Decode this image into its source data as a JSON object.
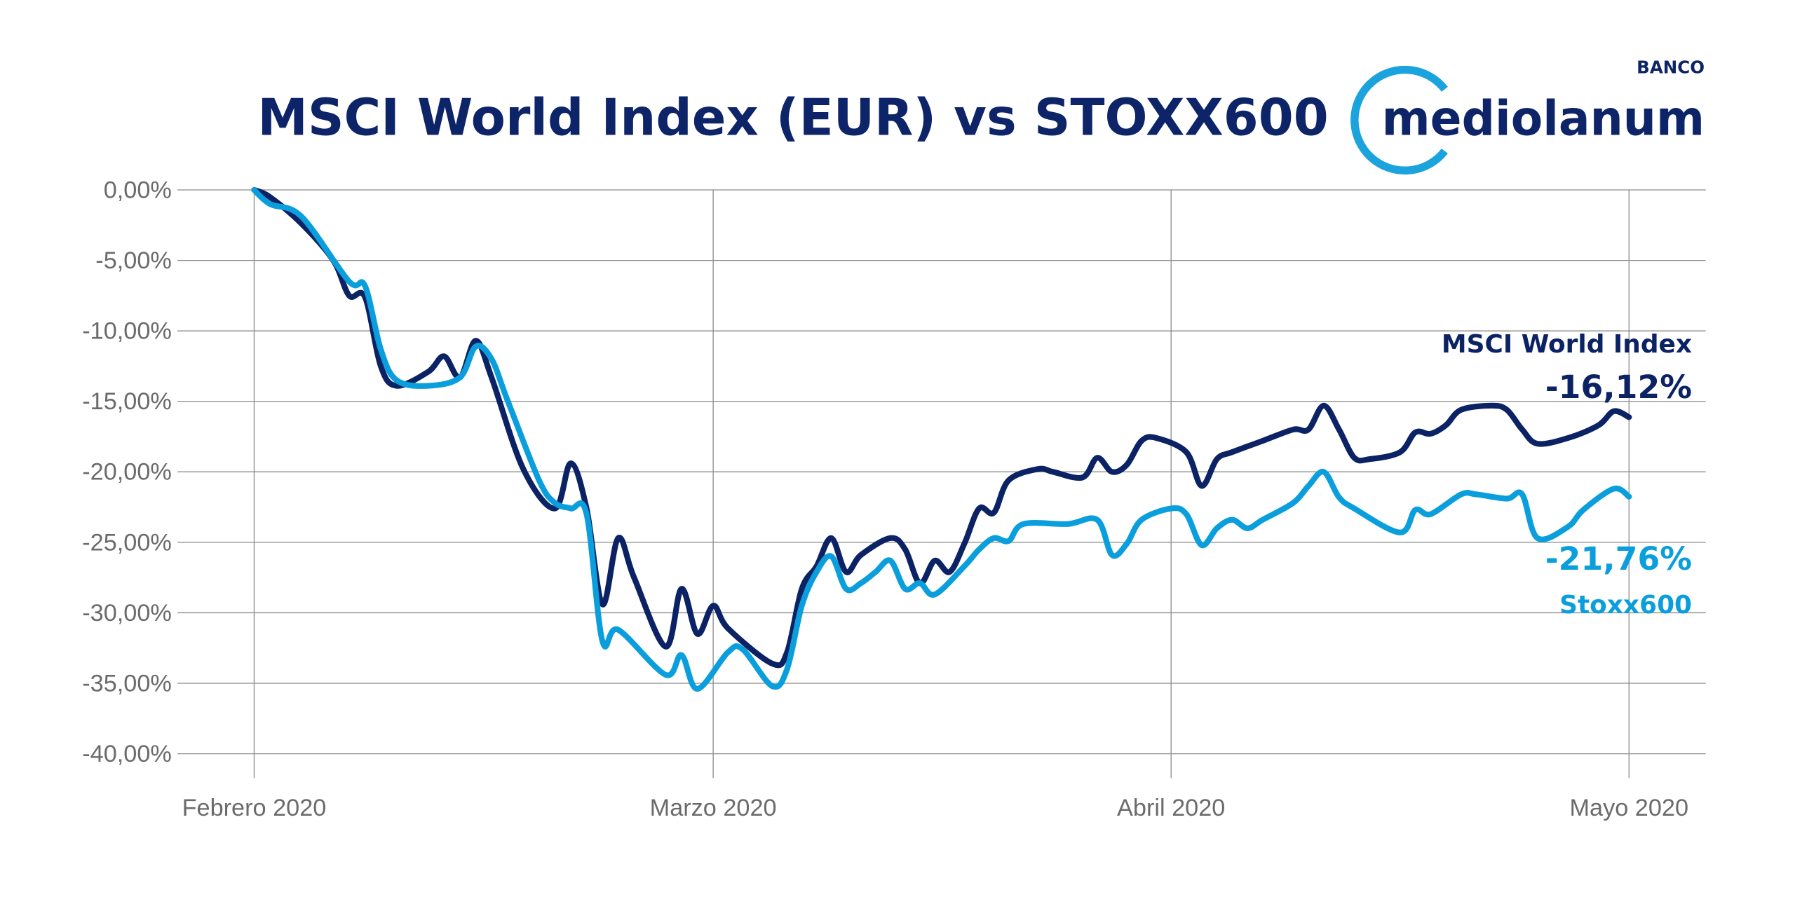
{
  "logo": {
    "brand": "mediolanum",
    "prefix": "BANCO",
    "ring_color": "#1aa3dd",
    "text_color": "#0d2468"
  },
  "chart_data": {
    "type": "line",
    "title": "MSCI World Index (EUR) vs STOXX600",
    "xlabel": "",
    "ylabel": "",
    "x_ticks": [
      {
        "date": "2020-02-01",
        "label": "Febrero 2020"
      },
      {
        "date": "2020-03-01",
        "label": "Marzo 2020"
      },
      {
        "date": "2020-04-01",
        "label": "Abril 2020"
      },
      {
        "date": "2020-05-01",
        "label": "Mayo 2020"
      }
    ],
    "y_ticks": [
      {
        "value": 0,
        "label": "0,00%"
      },
      {
        "value": -5,
        "label": "-5,00%"
      },
      {
        "value": -10,
        "label": "-10,00%"
      },
      {
        "value": -15,
        "label": "-15,00%"
      },
      {
        "value": -20,
        "label": "-20,00%"
      },
      {
        "value": -25,
        "label": "-25,00%"
      },
      {
        "value": -30,
        "label": "-30,00%"
      },
      {
        "value": -35,
        "label": "-35,00%"
      },
      {
        "value": -40,
        "label": "-40,00%"
      }
    ],
    "ylim": [
      -41.5,
      0
    ],
    "grid": true,
    "series": [
      {
        "name": "MSCI World Index",
        "final_label": "-16,12%",
        "color": "#0b2265",
        "points": [
          [
            "2020-02-01",
            0
          ],
          [
            "2020-02-02",
            -0.5
          ],
          [
            "2020-02-04",
            -2.4
          ],
          [
            "2020-02-06",
            -5.0
          ],
          [
            "2020-02-07",
            -7.5
          ],
          [
            "2020-02-08",
            -7.6
          ],
          [
            "2020-02-09",
            -12.5
          ],
          [
            "2020-02-10",
            -13.9
          ],
          [
            "2020-02-12",
            -12.9
          ],
          [
            "2020-02-13",
            -11.8
          ],
          [
            "2020-02-14",
            -13.3
          ],
          [
            "2020-02-15",
            -10.7
          ],
          [
            "2020-02-16",
            -13.3
          ],
          [
            "2020-02-18",
            -19.8
          ],
          [
            "2020-02-20",
            -22.6
          ],
          [
            "2020-02-21",
            -19.4
          ],
          [
            "2020-02-22",
            -22.6
          ],
          [
            "2020-02-23",
            -29.4
          ],
          [
            "2020-02-24",
            -24.7
          ],
          [
            "2020-02-25",
            -27.5
          ],
          [
            "2020-02-27",
            -32.4
          ],
          [
            "2020-02-28",
            -28.3
          ],
          [
            "2020-02-29",
            -31.5
          ],
          [
            "2020-03-01",
            -29.5
          ],
          [
            "2020-03-02",
            -31.1
          ],
          [
            "2020-03-05",
            -33.6
          ],
          [
            "2020-03-06",
            -32.8
          ],
          [
            "2020-03-07",
            -28.3
          ],
          [
            "2020-03-08",
            -26.7
          ],
          [
            "2020-03-09",
            -24.7
          ],
          [
            "2020-03-10",
            -27.1
          ],
          [
            "2020-03-11",
            -25.9
          ],
          [
            "2020-03-13",
            -24.7
          ],
          [
            "2020-03-14",
            -25.5
          ],
          [
            "2020-03-15",
            -27.9
          ],
          [
            "2020-03-16",
            -26.3
          ],
          [
            "2020-03-17",
            -27.1
          ],
          [
            "2020-03-18",
            -25.1
          ],
          [
            "2020-03-19",
            -22.6
          ],
          [
            "2020-03-20",
            -22.9
          ],
          [
            "2020-03-21",
            -20.6
          ],
          [
            "2020-03-23",
            -19.8
          ],
          [
            "2020-03-24",
            -20.0
          ],
          [
            "2020-03-26",
            -20.4
          ],
          [
            "2020-03-27",
            -19.0
          ],
          [
            "2020-03-28",
            -20.0
          ],
          [
            "2020-03-29",
            -19.5
          ],
          [
            "2020-03-30",
            -17.8
          ],
          [
            "2020-03-31",
            -17.6
          ],
          [
            "2020-04-02",
            -18.6
          ],
          [
            "2020-04-03",
            -21.0
          ],
          [
            "2020-04-04",
            -19.1
          ],
          [
            "2020-04-05",
            -18.6
          ],
          [
            "2020-04-07",
            -17.8
          ],
          [
            "2020-04-09",
            -17.0
          ],
          [
            "2020-04-10",
            -17.0
          ],
          [
            "2020-04-11",
            -15.3
          ],
          [
            "2020-04-12",
            -17.0
          ],
          [
            "2020-04-13",
            -19.0
          ],
          [
            "2020-04-14",
            -19.1
          ],
          [
            "2020-04-16",
            -18.6
          ],
          [
            "2020-04-17",
            -17.2
          ],
          [
            "2020-04-18",
            -17.3
          ],
          [
            "2020-04-19",
            -16.7
          ],
          [
            "2020-04-20",
            -15.6
          ],
          [
            "2020-04-22",
            -15.3
          ],
          [
            "2020-04-23",
            -15.6
          ],
          [
            "2020-04-24",
            -17.0
          ],
          [
            "2020-04-25",
            -18.0
          ],
          [
            "2020-04-27",
            -17.6
          ],
          [
            "2020-04-29",
            -16.7
          ],
          [
            "2020-04-30",
            -15.7
          ],
          [
            "2020-05-01",
            -16.12
          ]
        ]
      },
      {
        "name": "Stoxx600",
        "final_label": "-21,76%",
        "color": "#0a9fdc",
        "points": [
          [
            "2020-02-01",
            0
          ],
          [
            "2020-02-02",
            -1.0
          ],
          [
            "2020-02-04",
            -1.9
          ],
          [
            "2020-02-07",
            -6.5
          ],
          [
            "2020-02-08",
            -6.8
          ],
          [
            "2020-02-09",
            -11.3
          ],
          [
            "2020-02-10",
            -13.5
          ],
          [
            "2020-02-12",
            -13.9
          ],
          [
            "2020-02-14",
            -13.3
          ],
          [
            "2020-02-15",
            -11.1
          ],
          [
            "2020-02-16",
            -12.0
          ],
          [
            "2020-02-17",
            -14.9
          ],
          [
            "2020-02-19",
            -20.6
          ],
          [
            "2020-02-20",
            -22.2
          ],
          [
            "2020-02-21",
            -22.6
          ],
          [
            "2020-02-22",
            -23.0
          ],
          [
            "2020-02-23",
            -32.0
          ],
          [
            "2020-02-24",
            -31.2
          ],
          [
            "2020-02-27",
            -34.4
          ],
          [
            "2020-02-28",
            -33.0
          ],
          [
            "2020-02-29",
            -35.4
          ],
          [
            "2020-03-02",
            -32.8
          ],
          [
            "2020-03-03",
            -32.6
          ],
          [
            "2020-03-05",
            -35.2
          ],
          [
            "2020-03-06",
            -34.0
          ],
          [
            "2020-03-07",
            -29.5
          ],
          [
            "2020-03-08",
            -27.1
          ],
          [
            "2020-03-09",
            -26.0
          ],
          [
            "2020-03-10",
            -28.3
          ],
          [
            "2020-03-11",
            -27.9
          ],
          [
            "2020-03-12",
            -27.1
          ],
          [
            "2020-03-13",
            -26.3
          ],
          [
            "2020-03-14",
            -28.3
          ],
          [
            "2020-03-15",
            -27.9
          ],
          [
            "2020-03-16",
            -28.7
          ],
          [
            "2020-03-18",
            -26.7
          ],
          [
            "2020-03-19",
            -25.5
          ],
          [
            "2020-03-20",
            -24.7
          ],
          [
            "2020-03-21",
            -24.9
          ],
          [
            "2020-03-22",
            -23.7
          ],
          [
            "2020-03-25",
            -23.7
          ],
          [
            "2020-03-27",
            -23.4
          ],
          [
            "2020-03-28",
            -25.9
          ],
          [
            "2020-03-29",
            -25.1
          ],
          [
            "2020-03-30",
            -23.4
          ],
          [
            "2020-04-01",
            -22.6
          ],
          [
            "2020-04-02",
            -23.0
          ],
          [
            "2020-04-03",
            -25.2
          ],
          [
            "2020-04-04",
            -24.0
          ],
          [
            "2020-04-05",
            -23.4
          ],
          [
            "2020-04-06",
            -24.0
          ],
          [
            "2020-04-07",
            -23.4
          ],
          [
            "2020-04-09",
            -22.2
          ],
          [
            "2020-04-10",
            -21.0
          ],
          [
            "2020-04-11",
            -20.0
          ],
          [
            "2020-04-12",
            -21.8
          ],
          [
            "2020-04-13",
            -22.6
          ],
          [
            "2020-04-16",
            -24.3
          ],
          [
            "2020-04-17",
            -22.7
          ],
          [
            "2020-04-18",
            -23.0
          ],
          [
            "2020-04-20",
            -21.6
          ],
          [
            "2020-04-21",
            -21.6
          ],
          [
            "2020-04-23",
            -21.9
          ],
          [
            "2020-04-24",
            -21.6
          ],
          [
            "2020-04-25",
            -24.7
          ],
          [
            "2020-04-27",
            -23.9
          ],
          [
            "2020-04-28",
            -22.7
          ],
          [
            "2020-04-30",
            -21.2
          ],
          [
            "2020-05-01",
            -21.76
          ]
        ]
      }
    ]
  }
}
